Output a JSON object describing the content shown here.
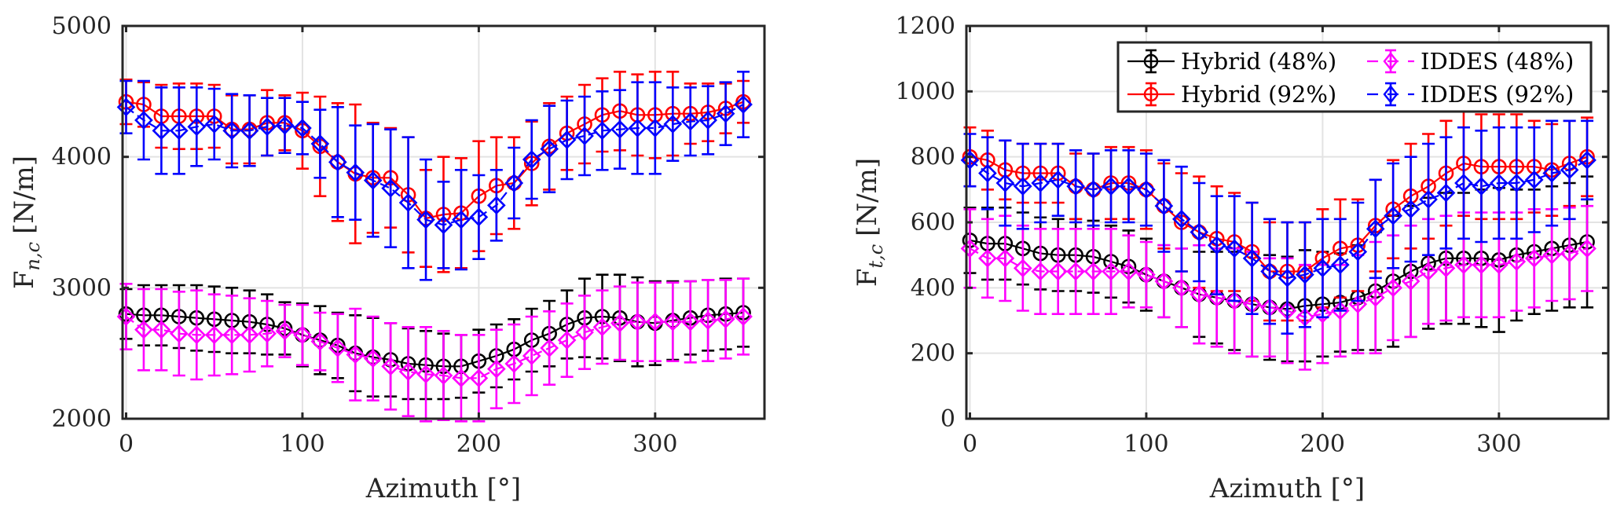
{
  "chart_data": [
    {
      "type": "line",
      "title": "",
      "xlabel": "Azimuth [°]",
      "ylabel": "F_{n,c} [N/m]",
      "ylabel_main": "F",
      "ylabel_sub": "n,c",
      "ylabel_unit": "[N/m]",
      "xlim": [
        0,
        360
      ],
      "ylim": [
        2000,
        5000
      ],
      "xticks": [
        0,
        100,
        200,
        300
      ],
      "xtick_labels": [
        "0",
        "100",
        "200",
        "300"
      ],
      "yticks": [
        2000,
        3000,
        4000,
        5000
      ],
      "ytick_labels": [
        "2000",
        "3000",
        "4000",
        "5000"
      ],
      "grid": true,
      "legend": false,
      "x": [
        0,
        10,
        20,
        30,
        40,
        50,
        60,
        70,
        80,
        90,
        100,
        110,
        120,
        130,
        140,
        150,
        160,
        170,
        180,
        190,
        200,
        210,
        220,
        230,
        240,
        250,
        260,
        270,
        280,
        290,
        300,
        310,
        320,
        330,
        340,
        350
      ],
      "series": [
        {
          "name": "Hybrid (48%)",
          "color": "#000000",
          "marker": "circle",
          "dashed": false,
          "values": [
            2800,
            2790,
            2790,
            2780,
            2770,
            2760,
            2750,
            2740,
            2720,
            2690,
            2640,
            2600,
            2560,
            2500,
            2470,
            2450,
            2420,
            2410,
            2400,
            2400,
            2440,
            2480,
            2530,
            2600,
            2650,
            2720,
            2770,
            2780,
            2770,
            2740,
            2730,
            2750,
            2770,
            2790,
            2800,
            2810
          ],
          "err": [
            190,
            230,
            230,
            240,
            250,
            250,
            250,
            240,
            230,
            200,
            240,
            260,
            250,
            290,
            300,
            280,
            270,
            260,
            250,
            240,
            240,
            240,
            230,
            240,
            250,
            260,
            300,
            320,
            330,
            340,
            320,
            300,
            280,
            270,
            270,
            260
          ]
        },
        {
          "name": "Hybrid (92%)",
          "color": "#ff0000",
          "marker": "circle",
          "dashed": false,
          "values": [
            4420,
            4400,
            4310,
            4310,
            4310,
            4310,
            4210,
            4210,
            4260,
            4260,
            4200,
            4080,
            3960,
            3870,
            3840,
            3840,
            3710,
            3530,
            3560,
            3570,
            3700,
            3780,
            3800,
            3950,
            4080,
            4180,
            4250,
            4320,
            4350,
            4320,
            4320,
            4330,
            4330,
            4340,
            4370,
            4420
          ],
          "err": [
            170,
            170,
            240,
            250,
            250,
            240,
            260,
            260,
            250,
            210,
            290,
            380,
            450,
            530,
            420,
            380,
            440,
            370,
            440,
            420,
            420,
            370,
            350,
            320,
            330,
            280,
            300,
            280,
            300,
            310,
            330,
            320,
            230,
            220,
            190,
            160
          ]
        },
        {
          "name": "IDDES (48%)",
          "color": "#ff00ff",
          "marker": "diamond",
          "dashed": true,
          "values": [
            2780,
            2680,
            2680,
            2650,
            2640,
            2640,
            2640,
            2640,
            2650,
            2670,
            2640,
            2590,
            2540,
            2490,
            2460,
            2400,
            2360,
            2340,
            2330,
            2310,
            2310,
            2380,
            2420,
            2480,
            2540,
            2600,
            2660,
            2700,
            2730,
            2740,
            2740,
            2740,
            2740,
            2750,
            2760,
            2780
          ],
          "err": [
            250,
            310,
            310,
            320,
            340,
            310,
            300,
            280,
            250,
            200,
            230,
            220,
            260,
            350,
            320,
            330,
            340,
            360,
            340,
            330,
            330,
            300,
            300,
            300,
            280,
            280,
            280,
            280,
            280,
            300,
            300,
            300,
            310,
            310,
            300,
            290
          ]
        },
        {
          "name": "IDDES (92%)",
          "color": "#0000ff",
          "marker": "diamond",
          "dashed": true,
          "values": [
            4380,
            4280,
            4200,
            4200,
            4230,
            4250,
            4200,
            4200,
            4230,
            4240,
            4220,
            4100,
            3960,
            3880,
            3820,
            3760,
            3650,
            3520,
            3480,
            3520,
            3540,
            3630,
            3800,
            3980,
            4060,
            4130,
            4160,
            4200,
            4210,
            4220,
            4220,
            4250,
            4270,
            4280,
            4330,
            4400
          ],
          "err": [
            200,
            300,
            330,
            330,
            300,
            270,
            280,
            270,
            220,
            210,
            200,
            260,
            420,
            360,
            430,
            450,
            500,
            460,
            330,
            380,
            320,
            270,
            270,
            300,
            330,
            300,
            300,
            300,
            300,
            350,
            350,
            280,
            260,
            260,
            240,
            250
          ]
        }
      ]
    },
    {
      "type": "line",
      "title": "",
      "xlabel": "Azimuth [°]",
      "ylabel": "F_{t,c} [N/m]",
      "ylabel_main": "F",
      "ylabel_sub": "t,c",
      "ylabel_unit": "[N/m]",
      "xlim": [
        0,
        360
      ],
      "ylim": [
        0,
        1200
      ],
      "xticks": [
        0,
        100,
        200,
        300
      ],
      "xtick_labels": [
        "0",
        "100",
        "200",
        "300"
      ],
      "yticks": [
        0,
        200,
        400,
        600,
        800,
        1000,
        1200
      ],
      "ytick_labels": [
        "0",
        "200",
        "400",
        "600",
        "800",
        "1000",
        "1200"
      ],
      "grid": true,
      "legend": true,
      "legend_position": "top-right",
      "x": [
        0,
        10,
        20,
        30,
        40,
        50,
        60,
        70,
        80,
        90,
        100,
        110,
        120,
        130,
        140,
        150,
        160,
        170,
        180,
        190,
        200,
        210,
        220,
        230,
        240,
        250,
        260,
        270,
        280,
        290,
        300,
        310,
        320,
        330,
        340,
        350
      ],
      "series": [
        {
          "name": "Hybrid (48%)",
          "color": "#000000",
          "marker": "circle",
          "dashed": false,
          "values": [
            545,
            535,
            535,
            520,
            505,
            500,
            500,
            495,
            480,
            465,
            440,
            420,
            400,
            380,
            370,
            360,
            350,
            340,
            335,
            345,
            350,
            355,
            370,
            390,
            420,
            450,
            475,
            490,
            490,
            490,
            485,
            500,
            510,
            520,
            530,
            540
          ],
          "err": [
            100,
            110,
            110,
            110,
            110,
            110,
            110,
            110,
            110,
            110,
            110,
            110,
            120,
            130,
            140,
            150,
            160,
            160,
            160,
            170,
            160,
            150,
            160,
            180,
            200,
            200,
            200,
            200,
            200,
            210,
            220,
            200,
            190,
            190,
            190,
            200
          ]
        },
        {
          "name": "Hybrid (92%)",
          "color": "#ff0000",
          "marker": "circle",
          "dashed": false,
          "values": [
            800,
            790,
            760,
            750,
            750,
            750,
            710,
            700,
            720,
            720,
            700,
            650,
            600,
            570,
            550,
            540,
            510,
            450,
            450,
            450,
            490,
            520,
            530,
            590,
            640,
            680,
            710,
            750,
            780,
            770,
            770,
            770,
            770,
            760,
            780,
            800
          ],
          "err": [
            90,
            90,
            90,
            90,
            90,
            90,
            100,
            110,
            110,
            110,
            120,
            130,
            150,
            170,
            160,
            150,
            150,
            150,
            150,
            150,
            150,
            150,
            140,
            140,
            150,
            160,
            160,
            160,
            160,
            160,
            160,
            160,
            140,
            140,
            130,
            120
          ]
        },
        {
          "name": "IDDES (48%)",
          "color": "#ff00ff",
          "marker": "diamond",
          "dashed": true,
          "values": [
            520,
            490,
            490,
            460,
            450,
            450,
            450,
            450,
            450,
            450,
            440,
            420,
            400,
            380,
            370,
            360,
            350,
            340,
            330,
            310,
            320,
            330,
            350,
            370,
            400,
            420,
            450,
            460,
            470,
            470,
            470,
            480,
            490,
            500,
            505,
            520
          ],
          "err": [
            120,
            120,
            130,
            130,
            130,
            130,
            130,
            130,
            130,
            110,
            100,
            110,
            120,
            150,
            150,
            160,
            160,
            150,
            160,
            160,
            150,
            140,
            150,
            170,
            160,
            170,
            160,
            160,
            160,
            160,
            160,
            150,
            150,
            140,
            140,
            130
          ]
        },
        {
          "name": "IDDES (92%)",
          "color": "#0000ff",
          "marker": "diamond",
          "dashed": true,
          "values": [
            790,
            750,
            720,
            710,
            720,
            730,
            710,
            700,
            710,
            710,
            700,
            650,
            610,
            570,
            530,
            520,
            490,
            450,
            430,
            440,
            460,
            470,
            510,
            580,
            620,
            640,
            670,
            690,
            720,
            710,
            720,
            720,
            730,
            750,
            760,
            790
          ],
          "err": [
            80,
            110,
            130,
            130,
            120,
            110,
            110,
            110,
            110,
            110,
            110,
            140,
            160,
            150,
            150,
            160,
            170,
            160,
            170,
            160,
            150,
            140,
            150,
            150,
            160,
            160,
            170,
            170,
            170,
            170,
            170,
            170,
            160,
            160,
            150,
            120
          ]
        }
      ]
    }
  ]
}
